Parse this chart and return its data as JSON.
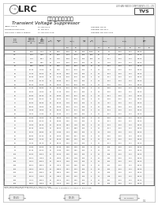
{
  "title_chinese": "瞬态电压抑制二极管",
  "title_english": "Transient Voltage Suppressor",
  "company": "LRC",
  "company_full": "LESHAN RADIO COMPONENTS CO., LTD",
  "doc_num": "TVS",
  "spec_lines": [
    [
      "JEDEC STYLE:",
      "P4   DO-41+1",
      "Ordering: DO-41"
    ],
    [
      "POWER DISSIPATION:",
      "W   DO-15, S",
      "Ordering: DO-15, S"
    ],
    [
      "INDUSTRY TYPES & SERIES:",
      "P4   DO-204,AC25",
      "Ordering: DO-204,AC25"
    ]
  ],
  "rows": [
    [
      "6.8",
      "6.45",
      "7.14",
      "10",
      "5.80",
      "58.8",
      "49",
      "400",
      "1000",
      "57",
      "77",
      "10.5",
      "10.5",
      "11.2",
      "0.875"
    ],
    [
      "6.75a",
      "7.13",
      "7.49",
      "",
      "6.40",
      "53.3",
      "44.4",
      "400",
      "500",
      "67",
      "97",
      "10.5",
      "10.5",
      "11.2",
      "0.775"
    ],
    [
      "7.5",
      "7.13",
      "7.88",
      "10",
      "6.40",
      "53.3",
      "44.4",
      "400",
      "500",
      "67",
      "97",
      "10.5",
      "10.5",
      "11.2",
      "0.775"
    ],
    [
      "8.2",
      "7.79",
      "8.61",
      "10",
      "7.02",
      "48.8",
      "40.7",
      "400",
      "200",
      "31",
      "10.7",
      "10.5",
      "10.5",
      "11.2",
      "0.875"
    ],
    [
      "9.1",
      "8.65",
      "9.56",
      "10",
      "7.78",
      "43.9",
      "36.6",
      "400",
      "50",
      "31",
      "11.9",
      "10.5",
      "10.5",
      "11.2",
      "0.875"
    ],
    [
      "10",
      "9.50",
      "10.50",
      "10",
      "8.55",
      "40.0",
      "33.3",
      "400",
      "10",
      "31",
      "13.2",
      "10.5",
      "10.5",
      "11.2",
      "0.875"
    ],
    [
      "11",
      "10.45",
      "11.55",
      "10",
      "9.40",
      "36.4",
      "30.3",
      "400",
      "5",
      "31",
      "14.1",
      "10.5",
      "10.5",
      "11.2",
      "0.875"
    ],
    [
      "12",
      "11.40",
      "12.60",
      "10",
      "10.20",
      "33.3",
      "27.8",
      "400",
      "5",
      "31",
      "15.3",
      "10.5",
      "10.5",
      "11.2",
      "0.875"
    ],
    [
      "13",
      "12.35",
      "13.65",
      "10",
      "11.10",
      "30.8",
      "25.6",
      "400",
      "5",
      "31",
      "16.7",
      "10.5",
      "10.5",
      "11.2",
      "0.875"
    ],
    [
      "15",
      "14.25",
      "15.75",
      "10",
      "12.80",
      "26.7",
      "22.2",
      "400",
      "5",
      "31",
      "19.2",
      "10.5",
      "10.5",
      "11.2",
      "0.875"
    ],
    [
      "16",
      "15.20",
      "16.80",
      "10",
      "13.60",
      "25.0",
      "20.8",
      "400",
      "5",
      "31",
      "20.5",
      "10.5",
      "10.5",
      "11.2",
      "0.875"
    ],
    [
      "18",
      "17.10",
      "18.90",
      "10",
      "15.30",
      "22.2",
      "18.5",
      "400",
      "5",
      "31",
      "23.0",
      "10.5",
      "10.5",
      "11.2",
      "0.875"
    ],
    [
      "20",
      "19.00",
      "21.00",
      "10",
      "17.10",
      "20.0",
      "16.7",
      "400",
      "5",
      "31",
      "25.6",
      "10.5",
      "10.5",
      "11.2",
      "0.875"
    ],
    [
      "22",
      "20.90",
      "23.10",
      "10",
      "18.80",
      "18.2",
      "15.2",
      "400",
      "5",
      "31",
      "28.1",
      "10.5",
      "10.5",
      "11.2",
      "0.875"
    ],
    [
      "24",
      "22.80",
      "25.20",
      "10",
      "20.50",
      "16.7",
      "13.9",
      "400",
      "5",
      "31",
      "30.8",
      "10.5",
      "10.5",
      "11.2",
      "0.875"
    ],
    [
      "27",
      "25.65",
      "28.35",
      "10",
      "23.10",
      "14.8",
      "12.3",
      "400",
      "5",
      "31",
      "34.7",
      "10.5",
      "10.5",
      "11.2",
      "0.875"
    ],
    [
      "30",
      "28.50",
      "31.50",
      "10",
      "25.60",
      "13.3",
      "11.1",
      "400",
      "5",
      "31",
      "38.5",
      "10.5",
      "10.5",
      "11.2",
      "0.875"
    ],
    [
      "33",
      "31.35",
      "34.65",
      "10",
      "28.20",
      "12.1",
      "10.1",
      "400",
      "5",
      "31",
      "42.3",
      "10.5",
      "10.5",
      "11.2",
      "0.875"
    ],
    [
      "36",
      "34.20",
      "37.80",
      "10",
      "30.80",
      "11.1",
      "9.26",
      "400",
      "5",
      "31",
      "46.2",
      "10.5",
      "10.5",
      "11.2",
      "0.875"
    ],
    [
      "39",
      "37.05",
      "41.00",
      "10",
      "33.30",
      "10.3",
      "8.55",
      "400",
      "5",
      "31",
      "50.0",
      "10.5",
      "10.5",
      "11.2",
      "0.875"
    ],
    [
      "43",
      "40.85",
      "45.20",
      "10",
      "36.80",
      "9.30",
      "7.75",
      "400",
      "5",
      "31",
      "55.1",
      "10.5",
      "10.5",
      "11.2",
      "0.875"
    ],
    [
      "47",
      "44.65",
      "49.40",
      "10",
      "40.20",
      "8.51",
      "7.09",
      "400",
      "5",
      "31",
      "60.3",
      "10.5",
      "10.5",
      "11.2",
      "0.875"
    ],
    [
      "51",
      "48.45",
      "53.55",
      "10",
      "43.60",
      "7.84",
      "6.53",
      "400",
      "5",
      "31",
      "65.4",
      "10.5",
      "10.5",
      "11.2",
      "0.875"
    ],
    [
      "56",
      "53.20",
      "58.80",
      "10",
      "47.80",
      "7.14",
      "5.95",
      "400",
      "5",
      "31",
      "71.8",
      "10.5",
      "10.5",
      "11.2",
      "0.875"
    ],
    [
      "62",
      "58.90",
      "65.10",
      "10",
      "53.00",
      "6.45",
      "5.37",
      "400",
      "5",
      "31",
      "79.5",
      "10.5",
      "10.5",
      "11.2",
      "0.875"
    ],
    [
      "68",
      "64.60",
      "71.40",
      "10",
      "58.10",
      "5.88",
      "4.90",
      "400",
      "5",
      "31",
      "87.1",
      "10.5",
      "10.5",
      "11.2",
      "0.875"
    ],
    [
      "75",
      "71.25",
      "78.75",
      "10",
      "64.10",
      "5.33",
      "4.44",
      "400",
      "5",
      "31",
      "96.1",
      "10.5",
      "10.5",
      "11.2",
      "0.875"
    ],
    [
      "82",
      "77.90",
      "86.00",
      "10",
      "70.10",
      "4.88",
      "4.06",
      "400",
      "5",
      "31",
      "105",
      "10.5",
      "10.5",
      "11.2",
      "0.875"
    ],
    [
      "91",
      "86.45",
      "95.50",
      "10",
      "77.80",
      "4.40",
      "3.66",
      "400",
      "5",
      "31",
      "117",
      "10.5",
      "10.5",
      "11.2",
      "0.875"
    ],
    [
      "100",
      "95.00",
      "105.00",
      "10",
      "85.50",
      "4.00",
      "3.33",
      "400",
      "5",
      "31",
      "128",
      "10.5",
      "10.5",
      "11.2",
      "0.875"
    ],
    [
      "110",
      "104.5",
      "115.50",
      "10",
      "94.00",
      "3.64",
      "3.03",
      "400",
      "5",
      "31",
      "141",
      "10.5",
      "10.5",
      "11.2",
      "0.875"
    ],
    [
      "120",
      "114.0",
      "126.00",
      "10",
      "102.0",
      "3.33",
      "2.78",
      "400",
      "5",
      "31",
      "154",
      "10.5",
      "10.5",
      "11.2",
      "0.875"
    ],
    [
      "130",
      "123.5",
      "136.50",
      "10",
      "111.0",
      "3.08",
      "2.56",
      "400",
      "5",
      "31",
      "167",
      "10.5",
      "10.5",
      "11.2",
      "0.875"
    ],
    [
      "150",
      "142.5",
      "157.50",
      "10",
      "128.0",
      "2.67",
      "2.22",
      "400",
      "5",
      "31",
      "192",
      "10.5",
      "10.5",
      "11.2",
      "0.875"
    ],
    [
      "160",
      "152.0",
      "168.00",
      "10",
      "136.0",
      "2.50",
      "2.08",
      "400",
      "5",
      "31",
      "205",
      "10.5",
      "10.5",
      "11.2",
      "0.875"
    ],
    [
      "170",
      "161.5",
      "178.50",
      "10",
      "145.0",
      "2.35",
      "1.96",
      "400",
      "5",
      "31",
      "218",
      "10.5",
      "10.5",
      "11.2",
      "0.875"
    ],
    [
      "180",
      "171.0",
      "189.00",
      "10",
      "154.0",
      "2.22",
      "1.85",
      "400",
      "5",
      "31",
      "231",
      "10.5",
      "10.5",
      "11.2",
      "0.875"
    ],
    [
      "200",
      "190.0",
      "210.00",
      "10",
      "171.0",
      "2.00",
      "1.67",
      "400",
      "5",
      "31",
      "256",
      "10.5",
      "10.5",
      "11.2",
      "0.875"
    ]
  ],
  "group_separators": [
    1,
    4,
    10,
    18,
    26
  ],
  "bg_color": "#ffffff",
  "border_color": "#777777",
  "light_border": "#bbbbbb",
  "header_bg": "#d8d8d8",
  "text_color": "#111111"
}
